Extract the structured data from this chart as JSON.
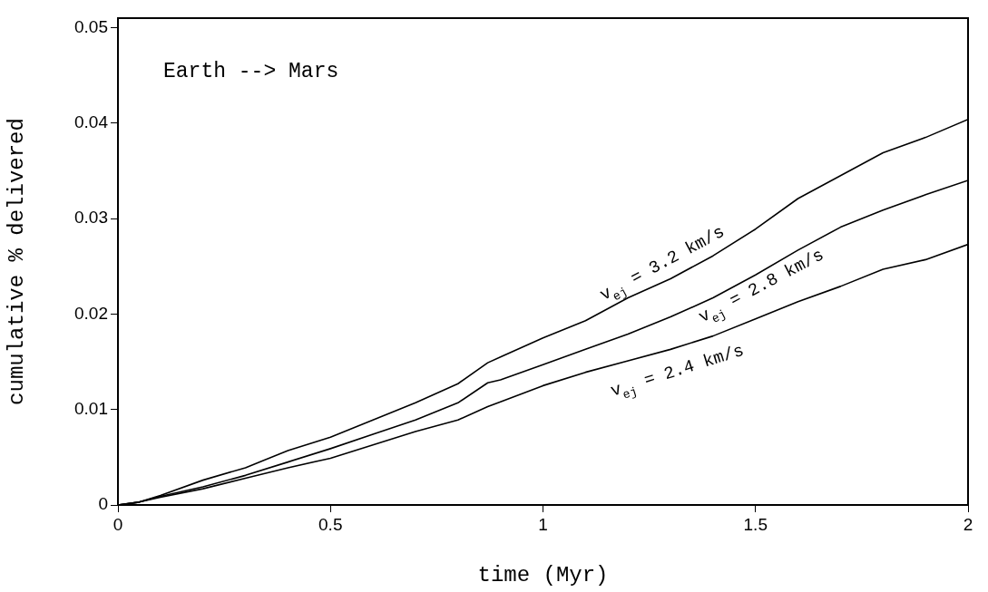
{
  "chart_data": {
    "type": "line",
    "xlabel": "time (Myr)",
    "ylabel": "cumulative % delivered",
    "annotations": [
      "Earth --> Mars"
    ],
    "x": [
      0,
      0.05,
      0.1,
      0.2,
      0.3,
      0.4,
      0.5,
      0.6,
      0.7,
      0.8,
      0.87,
      0.9,
      1,
      1.1,
      1.2,
      1.3,
      1.4,
      1.5,
      1.6,
      1.7,
      1.8,
      1.9,
      2
    ],
    "series": [
      {
        "name": "v$_{ej}$ = 3.2 km/s",
        "color": "#000000",
        "values": [
          0,
          0.0003,
          0.001,
          0.0026,
          0.0039,
          0.0057,
          0.0071,
          0.0089,
          0.0107,
          0.0127,
          0.0149,
          0.0155,
          0.0175,
          0.0193,
          0.0217,
          0.0237,
          0.0261,
          0.0289,
          0.0321,
          0.0345,
          0.0369,
          0.0385,
          0.0404
        ]
      },
      {
        "name": "v$_{ej}$ = 2.8 km/s",
        "color": "#000000",
        "values": [
          0,
          0.0003,
          0.0009,
          0.0019,
          0.0031,
          0.0045,
          0.0059,
          0.0074,
          0.0089,
          0.0107,
          0.0128,
          0.0131,
          0.0147,
          0.0163,
          0.0179,
          0.0197,
          0.0217,
          0.0241,
          0.0267,
          0.0291,
          0.0309,
          0.0325,
          0.034
        ]
      },
      {
        "name": "v$_{ej}$ = 2.4 km/s",
        "color": "#000000",
        "values": [
          0,
          0.0003,
          0.0008,
          0.0017,
          0.0028,
          0.0039,
          0.0049,
          0.0063,
          0.0077,
          0.0089,
          0.0103,
          0.0108,
          0.0125,
          0.0139,
          0.0151,
          0.0163,
          0.0177,
          0.0195,
          0.0213,
          0.0229,
          0.0247,
          0.0257,
          0.0273
        ]
      }
    ],
    "xlim": [
      0,
      2
    ],
    "xticks": [
      0,
      0.5,
      1,
      1.5,
      2
    ],
    "ylim": [
      0,
      0.051
    ],
    "yticks": [
      0,
      0.01,
      0.02,
      0.03,
      0.04,
      0.05
    ],
    "grid": false,
    "legend": false,
    "marker": "none",
    "line_style": "solid"
  }
}
